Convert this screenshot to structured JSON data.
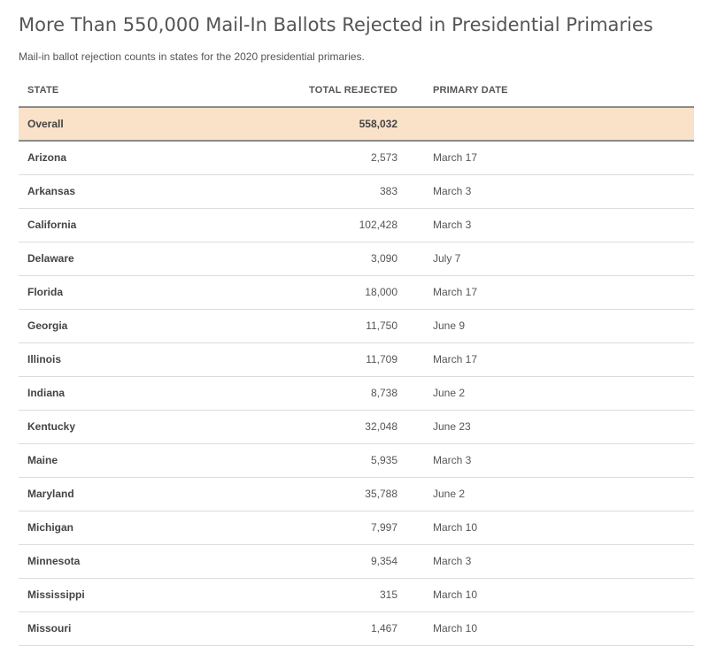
{
  "chart_data": {
    "type": "table",
    "title": "More Than 550,000 Mail-In Ballots Rejected in Presidential Primaries",
    "subtitle": "Mail-in ballot rejection counts in states for the 2020 presidential primaries.",
    "columns": [
      "STATE",
      "TOTAL REJECTED",
      "PRIMARY DATE"
    ],
    "overall": {
      "state": "Overall",
      "total": "558,032",
      "date": ""
    },
    "rows": [
      {
        "state": "Arizona",
        "total": "2,573",
        "date": "March 17"
      },
      {
        "state": "Arkansas",
        "total": "383",
        "date": "March 3"
      },
      {
        "state": "California",
        "total": "102,428",
        "date": "March 3"
      },
      {
        "state": "Delaware",
        "total": "3,090",
        "date": "July 7"
      },
      {
        "state": "Florida",
        "total": "18,000",
        "date": "March 17"
      },
      {
        "state": "Georgia",
        "total": "11,750",
        "date": "June 9"
      },
      {
        "state": "Illinois",
        "total": "11,709",
        "date": "March 17"
      },
      {
        "state": "Indiana",
        "total": "8,738",
        "date": "June 2"
      },
      {
        "state": "Kentucky",
        "total": "32,048",
        "date": "June 23"
      },
      {
        "state": "Maine",
        "total": "5,935",
        "date": "March 3"
      },
      {
        "state": "Maryland",
        "total": "35,788",
        "date": "June 2"
      },
      {
        "state": "Michigan",
        "total": "7,997",
        "date": "March 10"
      },
      {
        "state": "Minnesota",
        "total": "9,354",
        "date": "March 3"
      },
      {
        "state": "Mississippi",
        "total": "315",
        "date": "March 10"
      },
      {
        "state": "Missouri",
        "total": "1,467",
        "date": "March 10"
      }
    ]
  },
  "colors": {
    "overall_row_bg": "#f9e2c8",
    "header_rule": "#8a8a8a",
    "row_rule": "#dcdcdc",
    "text": "#444444"
  }
}
